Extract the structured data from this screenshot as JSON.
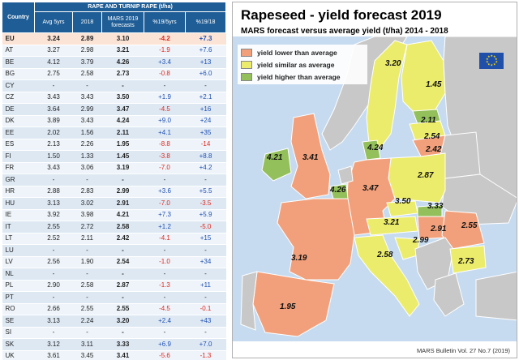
{
  "table": {
    "super_header": "RAPE AND TURNIP RAPE (t/ha)",
    "headers": {
      "country": "Country",
      "avg": "Avg 5yrs",
      "y2018": "2018",
      "mars": "MARS 2019 forecasts",
      "d5": "%19/5yrs",
      "d18": "%19/18"
    },
    "rows": [
      {
        "c": "EU",
        "avg": "3.24",
        "y18": "2.89",
        "mars": "3.10",
        "d5": "-4.2",
        "d18": "+7.3",
        "eu": true
      },
      {
        "c": "AT",
        "avg": "3.27",
        "y18": "2.98",
        "mars": "3.21",
        "d5": "-1.9",
        "d18": "+7.6"
      },
      {
        "c": "BE",
        "avg": "4.12",
        "y18": "3.79",
        "mars": "4.26",
        "d5": "+3.4",
        "d18": "+13"
      },
      {
        "c": "BG",
        "avg": "2.75",
        "y18": "2.58",
        "mars": "2.73",
        "d5": "-0.8",
        "d18": "+6.0"
      },
      {
        "c": "CY",
        "avg": "-",
        "y18": "-",
        "mars": "-",
        "d5": "-",
        "d18": "-"
      },
      {
        "c": "CZ",
        "avg": "3.43",
        "y18": "3.43",
        "mars": "3.50",
        "d5": "+1.9",
        "d18": "+2.1"
      },
      {
        "c": "DE",
        "avg": "3.64",
        "y18": "2.99",
        "mars": "3.47",
        "d5": "-4.5",
        "d18": "+16"
      },
      {
        "c": "DK",
        "avg": "3.89",
        "y18": "3.43",
        "mars": "4.24",
        "d5": "+9.0",
        "d18": "+24"
      },
      {
        "c": "EE",
        "avg": "2.02",
        "y18": "1.56",
        "mars": "2.11",
        "d5": "+4.1",
        "d18": "+35"
      },
      {
        "c": "ES",
        "avg": "2.13",
        "y18": "2.26",
        "mars": "1.95",
        "d5": "-8.8",
        "d18": "-14"
      },
      {
        "c": "FI",
        "avg": "1.50",
        "y18": "1.33",
        "mars": "1.45",
        "d5": "-3.8",
        "d18": "+8.8"
      },
      {
        "c": "FR",
        "avg": "3.43",
        "y18": "3.06",
        "mars": "3.19",
        "d5": "-7.0",
        "d18": "+4.2"
      },
      {
        "c": "GR",
        "avg": "-",
        "y18": "-",
        "mars": "-",
        "d5": "-",
        "d18": "-"
      },
      {
        "c": "HR",
        "avg": "2.88",
        "y18": "2.83",
        "mars": "2.99",
        "d5": "+3.6",
        "d18": "+5.5"
      },
      {
        "c": "HU",
        "avg": "3.13",
        "y18": "3.02",
        "mars": "2.91",
        "d5": "-7.0",
        "d18": "-3.5"
      },
      {
        "c": "IE",
        "avg": "3.92",
        "y18": "3.98",
        "mars": "4.21",
        "d5": "+7.3",
        "d18": "+5.9"
      },
      {
        "c": "IT",
        "avg": "2.55",
        "y18": "2.72",
        "mars": "2.58",
        "d5": "+1.2",
        "d18": "-5.0"
      },
      {
        "c": "LT",
        "avg": "2.52",
        "y18": "2.11",
        "mars": "2.42",
        "d5": "-4.1",
        "d18": "+15"
      },
      {
        "c": "LU",
        "avg": "-",
        "y18": "-",
        "mars": "-",
        "d5": "-",
        "d18": "-"
      },
      {
        "c": "LV",
        "avg": "2.56",
        "y18": "1.90",
        "mars": "2.54",
        "d5": "-1.0",
        "d18": "+34"
      },
      {
        "c": "NL",
        "avg": "-",
        "y18": "-",
        "mars": "-",
        "d5": "-",
        "d18": "-"
      },
      {
        "c": "PL",
        "avg": "2.90",
        "y18": "2.58",
        "mars": "2.87",
        "d5": "-1.3",
        "d18": "+11"
      },
      {
        "c": "PT",
        "avg": "-",
        "y18": "-",
        "mars": "-",
        "d5": "-",
        "d18": "-"
      },
      {
        "c": "RO",
        "avg": "2.66",
        "y18": "2.55",
        "mars": "2.55",
        "d5": "-4.5",
        "d18": "-0.1"
      },
      {
        "c": "SE",
        "avg": "3.13",
        "y18": "2.24",
        "mars": "3.20",
        "d5": "+2.4",
        "d18": "+43"
      },
      {
        "c": "SI",
        "avg": "-",
        "y18": "-",
        "mars": "-",
        "d5": "-",
        "d18": "-"
      },
      {
        "c": "SK",
        "avg": "3.12",
        "y18": "3.11",
        "mars": "3.33",
        "d5": "+6.9",
        "d18": "+7.0"
      },
      {
        "c": "UK",
        "avg": "3.61",
        "y18": "3.45",
        "mars": "3.41",
        "d5": "-5.6",
        "d18": "-1.3"
      }
    ]
  },
  "map": {
    "title": "Rapeseed - yield forecast 2019",
    "subtitle": "MARS forecast versus average yield (t/ha) 2014 - 2018",
    "legend": [
      {
        "label": "yield lower than average",
        "color": "#f2a07b"
      },
      {
        "label": "yield similar as average",
        "color": "#ecec6c"
      },
      {
        "label": "yield higher than average",
        "color": "#93c05a"
      }
    ],
    "colors": {
      "sea": "#c6dbf0",
      "nodata": "#c8c8c8",
      "border": "#ffffff",
      "eu_logo": "#1f4fa8",
      "eu_stars": "#ffdd00"
    },
    "labels": [
      "3.20",
      "1.45",
      "2.11",
      "2.54",
      "2.42",
      "4.24",
      "4.21",
      "3.41",
      "2.87",
      "4.26",
      "3.47",
      "3.50",
      "3.33",
      "3.21",
      "2.91",
      "2.55",
      "3.19",
      "2.99",
      "2.73",
      "2.58",
      "1.95"
    ],
    "footer": "MARS Bulletin Vol. 27 No.7 (2019)"
  },
  "chart_data": {
    "type": "table",
    "title": "RAPE AND TURNIP RAPE (t/ha)",
    "columns": [
      "Country",
      "Avg 5yrs",
      "2018",
      "MARS 2019 forecasts",
      "%19/5yrs",
      "%19/18"
    ],
    "rows": [
      [
        "EU",
        3.24,
        2.89,
        3.1,
        -4.2,
        7.3
      ],
      [
        "AT",
        3.27,
        2.98,
        3.21,
        -1.9,
        7.6
      ],
      [
        "BE",
        4.12,
        3.79,
        4.26,
        3.4,
        13
      ],
      [
        "BG",
        2.75,
        2.58,
        2.73,
        -0.8,
        6.0
      ],
      [
        "CY",
        null,
        null,
        null,
        null,
        null
      ],
      [
        "CZ",
        3.43,
        3.43,
        3.5,
        1.9,
        2.1
      ],
      [
        "DE",
        3.64,
        2.99,
        3.47,
        -4.5,
        16
      ],
      [
        "DK",
        3.89,
        3.43,
        4.24,
        9.0,
        24
      ],
      [
        "EE",
        2.02,
        1.56,
        2.11,
        4.1,
        35
      ],
      [
        "ES",
        2.13,
        2.26,
        1.95,
        -8.8,
        -14
      ],
      [
        "FI",
        1.5,
        1.33,
        1.45,
        -3.8,
        8.8
      ],
      [
        "FR",
        3.43,
        3.06,
        3.19,
        -7.0,
        4.2
      ],
      [
        "GR",
        null,
        null,
        null,
        null,
        null
      ],
      [
        "HR",
        2.88,
        2.83,
        2.99,
        3.6,
        5.5
      ],
      [
        "HU",
        3.13,
        3.02,
        2.91,
        -7.0,
        -3.5
      ],
      [
        "IE",
        3.92,
        3.98,
        4.21,
        7.3,
        5.9
      ],
      [
        "IT",
        2.55,
        2.72,
        2.58,
        1.2,
        -5.0
      ],
      [
        "LT",
        2.52,
        2.11,
        2.42,
        -4.1,
        15
      ],
      [
        "LU",
        null,
        null,
        null,
        null,
        null
      ],
      [
        "LV",
        2.56,
        1.9,
        2.54,
        -1.0,
        34
      ],
      [
        "NL",
        null,
        null,
        null,
        null,
        null
      ],
      [
        "PL",
        2.9,
        2.58,
        2.87,
        -1.3,
        11
      ],
      [
        "PT",
        null,
        null,
        null,
        null,
        null
      ],
      [
        "RO",
        2.66,
        2.55,
        2.55,
        -4.5,
        -0.1
      ],
      [
        "SE",
        3.13,
        2.24,
        3.2,
        2.4,
        43
      ],
      [
        "SI",
        null,
        null,
        null,
        null,
        null
      ],
      [
        "SK",
        3.12,
        3.11,
        3.33,
        6.9,
        7.0
      ],
      [
        "UK",
        3.61,
        3.45,
        3.41,
        -5.6,
        -1.3
      ]
    ]
  }
}
